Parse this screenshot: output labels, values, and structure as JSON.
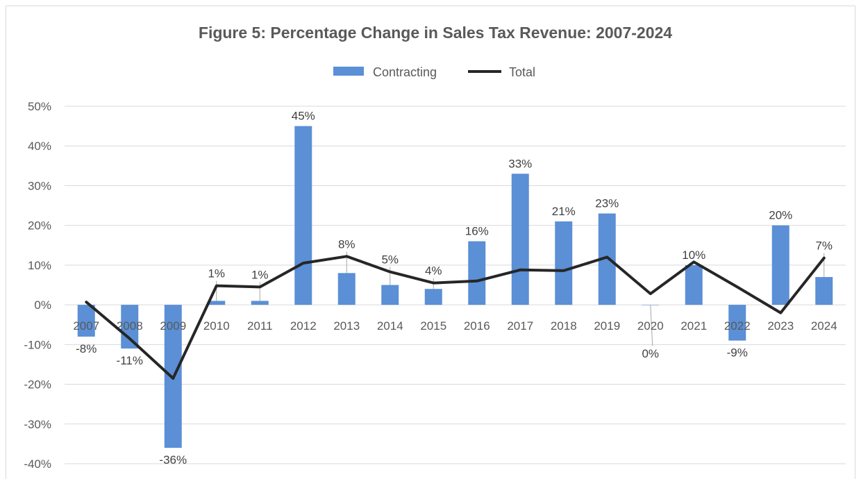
{
  "chart_data": {
    "type": "bar",
    "title": "Figure 5: Percentage Change in Sales Tax Revenue: 2007-2024",
    "categories": [
      "2007",
      "2008",
      "2009",
      "2010",
      "2011",
      "2012",
      "2013",
      "2014",
      "2015",
      "2016",
      "2017",
      "2018",
      "2019",
      "2020",
      "2021",
      "2022",
      "2023",
      "2024"
    ],
    "series": [
      {
        "name": "Contracting",
        "type": "bar",
        "color": "#5b8fd6",
        "values": [
          -8,
          -11,
          -36,
          1,
          1,
          45,
          8,
          5,
          4,
          16,
          33,
          21,
          23,
          0,
          10,
          -9,
          20,
          7
        ],
        "labels": [
          "-8%",
          "-11%",
          "-36%",
          "1%",
          "1%",
          "45%",
          "8%",
          "5%",
          "4%",
          "16%",
          "33%",
          "21%",
          "23%",
          "0%",
          "10%",
          "-9%",
          "20%",
          "7%"
        ]
      },
      {
        "name": "Total",
        "type": "line",
        "color": "#262626",
        "values": [
          0.7,
          -8.5,
          -18.5,
          4.8,
          4.5,
          10.5,
          12.2,
          8.3,
          5.5,
          6.0,
          8.8,
          8.6,
          12.0,
          2.8,
          10.8,
          4.5,
          -2.0,
          11.8
        ]
      }
    ],
    "yaxis": {
      "min": -40,
      "max": 50,
      "step": 10,
      "tick_labels": [
        "50%",
        "40%",
        "30%",
        "20%",
        "10%",
        "0%",
        "-10%",
        "-20%",
        "-30%",
        "-40%"
      ]
    },
    "grid": true,
    "legend_position": "top-center"
  }
}
